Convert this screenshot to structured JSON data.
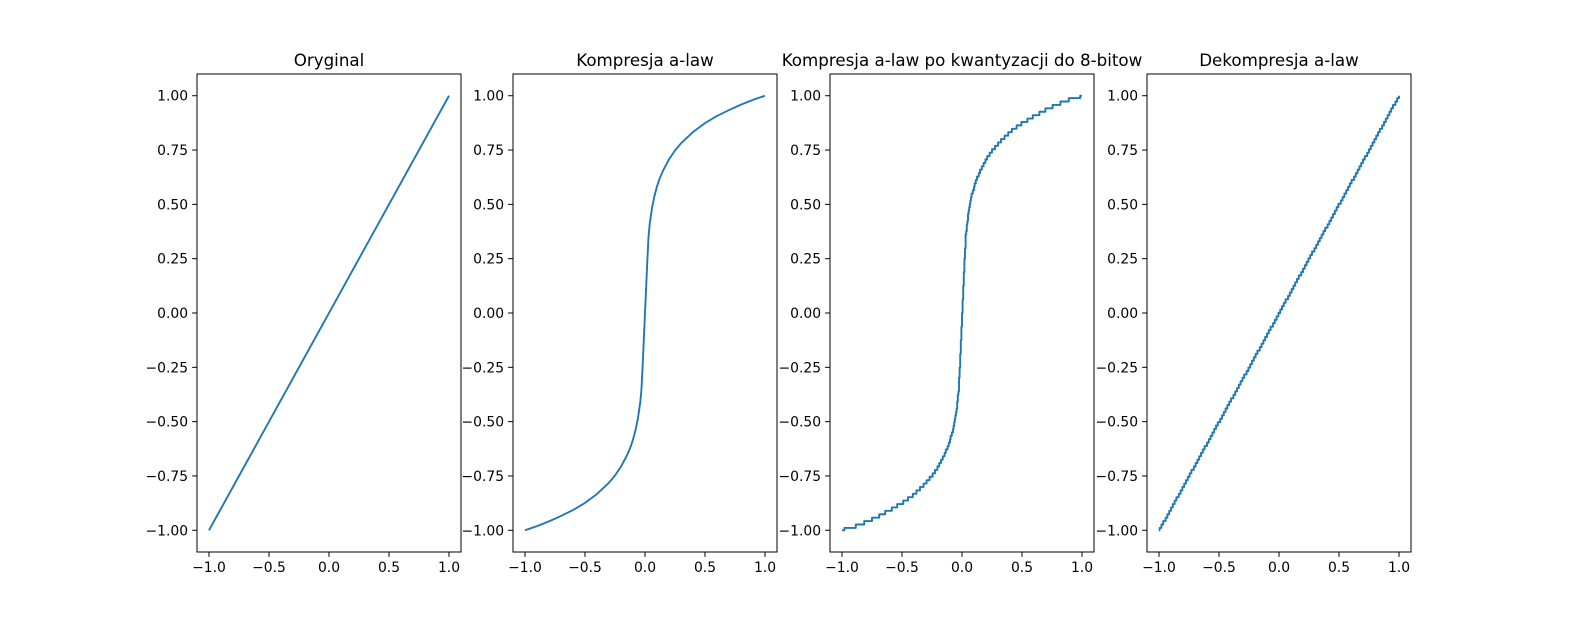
{
  "chart_data": [
    {
      "type": "line",
      "title": "Oryginal",
      "xlabel": "",
      "ylabel": "",
      "xlim": [
        -1.1,
        1.1
      ],
      "ylim": [
        -1.1,
        1.1
      ],
      "xticks": [
        -1.0,
        -0.5,
        0.0,
        0.5,
        1.0
      ],
      "xtick_labels": [
        "−1.0",
        "−0.5",
        "0.0",
        "0.5",
        "1.0"
      ],
      "yticks": [
        1.0,
        0.75,
        0.5,
        0.25,
        0.0,
        -0.25,
        -0.5,
        -0.75,
        -1.0
      ],
      "ytick_labels": [
        "1.00",
        "0.75",
        "0.50",
        "0.25",
        "0.00",
        "−0.25",
        "−0.50",
        "−0.75",
        "−1.00"
      ],
      "grid": false,
      "color": "#1f77b4",
      "series": [
        {
          "x": [
            -1.0,
            1.0
          ],
          "y": [
            -1.0,
            1.0
          ]
        }
      ]
    },
    {
      "type": "line",
      "title": "Kompresja a-law",
      "xlabel": "",
      "ylabel": "",
      "xlim": [
        -1.1,
        1.1
      ],
      "ylim": [
        -1.1,
        1.1
      ],
      "xticks": [
        -1.0,
        -0.5,
        0.0,
        0.5,
        1.0
      ],
      "xtick_labels": [
        "−1.0",
        "−0.5",
        "0.0",
        "0.5",
        "1.0"
      ],
      "yticks": [
        1.0,
        0.75,
        0.5,
        0.25,
        0.0,
        -0.25,
        -0.5,
        -0.75,
        -1.0
      ],
      "ytick_labels": [
        "1.00",
        "0.75",
        "0.50",
        "0.25",
        "0.00",
        "−0.25",
        "−0.50",
        "−0.75",
        "−1.00"
      ],
      "grid": false,
      "color": "#1f77b4",
      "series": [
        {
          "x": [
            -1.0,
            -0.9,
            -0.8,
            -0.7,
            -0.6,
            -0.5,
            -0.4,
            -0.3,
            -0.25,
            -0.2,
            -0.15,
            -0.12,
            -0.1,
            -0.08,
            -0.06,
            -0.04,
            -0.03,
            -0.02,
            -0.01,
            0.0,
            0.01,
            0.02,
            0.03,
            0.04,
            0.06,
            0.08,
            0.1,
            0.12,
            0.15,
            0.2,
            0.25,
            0.3,
            0.4,
            0.5,
            0.6,
            0.7,
            0.8,
            0.9,
            1.0
          ],
          "y": [
            -1.0,
            -0.981,
            -0.959,
            -0.934,
            -0.907,
            -0.874,
            -0.833,
            -0.781,
            -0.748,
            -0.707,
            -0.655,
            -0.616,
            -0.583,
            -0.541,
            -0.488,
            -0.414,
            -0.355,
            -0.248,
            -0.124,
            0.0,
            0.124,
            0.248,
            0.355,
            0.414,
            0.488,
            0.541,
            0.583,
            0.616,
            0.655,
            0.707,
            0.748,
            0.781,
            0.833,
            0.874,
            0.907,
            0.934,
            0.959,
            0.981,
            1.0
          ]
        }
      ]
    },
    {
      "type": "line",
      "title": "Kompresja a-law po kwantyzacji do 8-bitow",
      "xlabel": "",
      "ylabel": "",
      "xlim": [
        -1.1,
        1.1
      ],
      "ylim": [
        -1.1,
        1.1
      ],
      "xticks": [
        -1.0,
        -0.5,
        0.0,
        0.5,
        1.0
      ],
      "xtick_labels": [
        "−1.0",
        "−0.5",
        "0.0",
        "0.5",
        "1.0"
      ],
      "yticks": [
        1.0,
        0.75,
        0.5,
        0.25,
        0.0,
        -0.25,
        -0.5,
        -0.75,
        -1.0
      ],
      "ytick_labels": [
        "1.00",
        "0.75",
        "0.50",
        "0.25",
        "0.00",
        "−0.25",
        "−0.50",
        "−0.75",
        "−1.00"
      ],
      "grid": false,
      "color": "#1f77b4",
      "series": [
        {
          "x": [
            -1.0,
            -0.9,
            -0.8,
            -0.7,
            -0.6,
            -0.5,
            -0.4,
            -0.3,
            -0.25,
            -0.2,
            -0.15,
            -0.12,
            -0.1,
            -0.08,
            -0.06,
            -0.04,
            -0.03,
            -0.02,
            -0.01,
            0.0,
            0.01,
            0.02,
            0.03,
            0.04,
            0.06,
            0.08,
            0.1,
            0.12,
            0.15,
            0.2,
            0.25,
            0.3,
            0.4,
            0.5,
            0.6,
            0.7,
            0.8,
            0.9,
            1.0
          ],
          "y": [
            -1.0,
            -0.984,
            -0.961,
            -0.937,
            -0.906,
            -0.874,
            -0.835,
            -0.78,
            -0.748,
            -0.709,
            -0.654,
            -0.614,
            -0.583,
            -0.543,
            -0.488,
            -0.413,
            -0.354,
            -0.244,
            -0.126,
            0.0,
            0.126,
            0.244,
            0.354,
            0.413,
            0.488,
            0.543,
            0.583,
            0.614,
            0.654,
            0.709,
            0.748,
            0.78,
            0.835,
            0.874,
            0.906,
            0.937,
            0.961,
            0.984,
            1.0
          ],
          "step": 0.0157
        }
      ]
    },
    {
      "type": "line",
      "title": "Dekompresja a-law",
      "xlabel": "",
      "ylabel": "",
      "xlim": [
        -1.1,
        1.1
      ],
      "ylim": [
        -1.1,
        1.1
      ],
      "xticks": [
        -1.0,
        -0.5,
        0.0,
        0.5,
        1.0
      ],
      "xtick_labels": [
        "−1.0",
        "−0.5",
        "0.0",
        "0.5",
        "1.0"
      ],
      "yticks": [
        1.0,
        0.75,
        0.5,
        0.25,
        0.0,
        -0.25,
        -0.5,
        -0.75,
        -1.0
      ],
      "ytick_labels": [
        "1.00",
        "0.75",
        "0.50",
        "0.25",
        "0.00",
        "−0.25",
        "−0.50",
        "−0.75",
        "−1.00"
      ],
      "grid": false,
      "color": "#1f77b4",
      "series": [
        {
          "x": [
            -1.0,
            1.0
          ],
          "y": [
            -1.0,
            1.0
          ],
          "step": 0.0157
        }
      ]
    }
  ]
}
